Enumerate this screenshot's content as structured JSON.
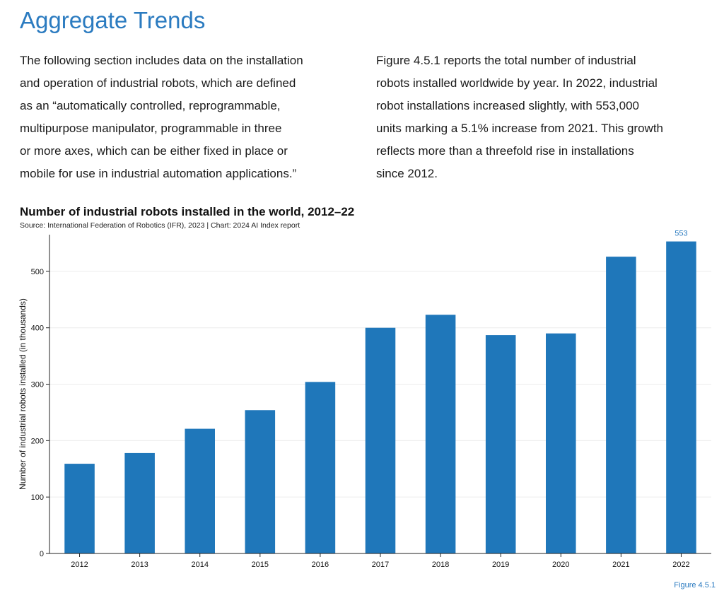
{
  "section": {
    "heading": "Aggregate Trends",
    "left_lines": [
      "The following section includes data on the installation",
      "and operation of industrial robots, which are defined",
      "as an “automatically controlled, reprogrammable,",
      "multipurpose manipulator, programmable in three",
      "or more axes, which can be either fixed in place or",
      "mobile for use in industrial automation applications.”"
    ],
    "right_lines": [
      "Figure 4.5.1 reports the total number of industrial",
      "robots installed worldwide by year. In 2022, industrial",
      "robot installations increased slightly, with 553,000",
      "units marking a 5.1% increase from 2021. This growth",
      "reflects more than a threefold rise in installations",
      "since 2012."
    ]
  },
  "figure_label": "Figure 4.5.1",
  "colors": {
    "accent": "#2b7bc0",
    "bar": "#1f77ba",
    "grid": "#ececec",
    "axis": "#222222"
  },
  "chart_data": {
    "type": "bar",
    "title": "Number of industrial robots installed in the world, 2012–22",
    "subtitle": "Source: International Federation of Robotics (IFR), 2023 | Chart: 2024 AI Index report",
    "xlabel": "",
    "ylabel": "Number of industrial robots installed (in thousands)",
    "categories": [
      "2012",
      "2013",
      "2014",
      "2015",
      "2016",
      "2017",
      "2018",
      "2019",
      "2020",
      "2021",
      "2022"
    ],
    "values": [
      159,
      178,
      221,
      254,
      304,
      400,
      423,
      387,
      390,
      526,
      553
    ],
    "ylim": [
      0,
      565
    ],
    "yticks": [
      0,
      100,
      200,
      300,
      400,
      500
    ],
    "data_labels": [
      {
        "category": "2022",
        "text": "553"
      }
    ],
    "grid": true,
    "legend": "none"
  }
}
